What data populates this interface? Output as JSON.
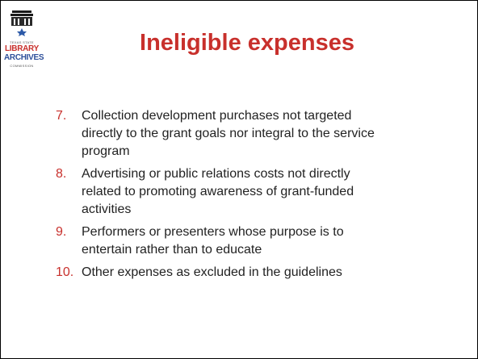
{
  "logo": {
    "top_line": "TEXAS STATE",
    "line1": "LIBRARY",
    "line2": "ARCHIVES",
    "bottom_line": "COMMISSION"
  },
  "title": "Ineligible expenses",
  "items": [
    {
      "number": "7.",
      "lines": [
        "Collection development purchases not targeted",
        "directly to the grant goals nor integral to the service",
        "program"
      ]
    },
    {
      "number": "8.",
      "lines": [
        "Advertising or public relations costs not directly",
        "related to promoting awareness of grant-funded",
        "activities"
      ]
    },
    {
      "number": "9.",
      "lines": [
        "Performers or presenters whose purpose is to",
        "entertain rather than to educate"
      ]
    },
    {
      "number": "10.",
      "lines": [
        "Other expenses as excluded in the guidelines"
      ]
    }
  ]
}
